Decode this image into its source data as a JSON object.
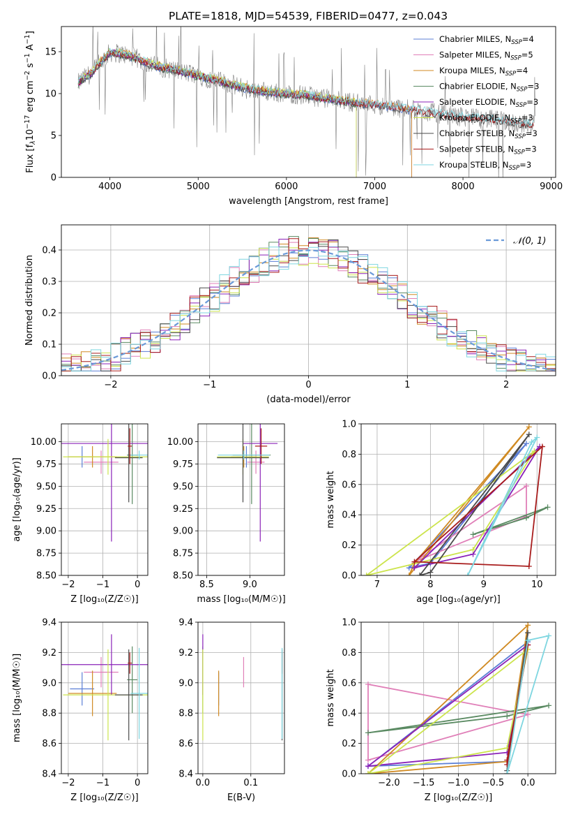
{
  "colors": {
    "Chabrier MILES": "#5b7fd6",
    "Salpeter MILES": "#e07fb8",
    "Kroupa MILES": "#d08a22",
    "Chabrier ELODIE": "#5a8a62",
    "Salpeter ELODIE": "#8a22b8",
    "Kroupa ELODIE": "#cce44c",
    "Chabrier STELIB": "#4a4a4a",
    "Salpeter STELIB": "#a81c1c",
    "Kroupa STELIB": "#7ed6e0",
    "normal": "#6a9ad8",
    "observed": "#808080"
  },
  "chart_data": [
    {
      "id": "spectrum",
      "type": "line",
      "title": "PLATE=1818, MJD=54539, FIBERID=0477, z=0.043",
      "xlabel": "wavelength [Angstrom, rest frame]",
      "ylabel_parts": [
        "Flux [f",
        "λ",
        "10",
        "−17",
        " erg cm",
        "−2",
        " s",
        "−1",
        " A",
        "−1",
        "]"
      ],
      "xlim": [
        3450,
        9050
      ],
      "ylim": [
        0,
        18
      ],
      "xticks": [
        4000,
        5000,
        6000,
        7000,
        8000,
        9000
      ],
      "yticks": [
        0,
        5,
        10,
        15
      ],
      "legend_position": "top-right",
      "legend": [
        {
          "name": "Chabrier MILES",
          "nssp": "4"
        },
        {
          "name": "Salpeter MILES",
          "nssp": "5"
        },
        {
          "name": "Kroupa MILES",
          "nssp": "4"
        },
        {
          "name": "Chabrier ELODIE",
          "nssp": "3"
        },
        {
          "name": "Salpeter ELODIE",
          "nssp": "3"
        },
        {
          "name": "Kroupa ELODIE",
          "nssp": "3"
        },
        {
          "name": "Chabrier STELIB",
          "nssp": "3"
        },
        {
          "name": "Salpeter STELIB",
          "nssp": "3"
        },
        {
          "name": "Kroupa STELIB",
          "nssp": "3"
        }
      ],
      "observed_x": [
        3600,
        3700,
        3800,
        3900,
        4000,
        4100,
        4200,
        4300,
        4400,
        4500,
        4600,
        4700,
        4800,
        4900,
        5000,
        5200,
        5400,
        5600,
        5800,
        6000,
        6200,
        6400,
        6600,
        6800,
        7000,
        7200,
        7400,
        7600,
        7800,
        8000,
        8200,
        8400,
        8600,
        8800
      ],
      "observed_y": [
        10.8,
        11.8,
        12.5,
        13.8,
        14.9,
        14.8,
        14.6,
        14.2,
        13.7,
        13.4,
        13.1,
        12.9,
        12.6,
        12.4,
        12.1,
        11.6,
        11.0,
        10.5,
        10.2,
        10.0,
        9.8,
        9.5,
        9.2,
        8.9,
        8.7,
        8.4,
        8.1,
        7.8,
        7.5,
        7.2,
        7.0,
        6.8,
        6.5,
        6.3
      ],
      "model_end_wavelength": {
        "MILES": 7420,
        "ELODIE": 6790,
        "STELIB": 8800
      }
    },
    {
      "id": "residuals",
      "type": "line",
      "xlabel": "(data-model)/error",
      "ylabel": "Normed distribution",
      "xlim": [
        -2.5,
        2.5
      ],
      "ylim": [
        0,
        0.48
      ],
      "xticks": [
        -2,
        -1,
        0,
        1,
        2
      ],
      "yticks": [
        0.0,
        0.1,
        0.2,
        0.3,
        0.4
      ],
      "normal_label": "𝒩(0, 1)",
      "legend_position": "top-right"
    },
    {
      "id": "z-age",
      "type": "scatter",
      "xlabel": "Z [log₁₀(Z/Z☉)]",
      "ylabel": "age  [log₁₀(age/yr)]",
      "xlim": [
        -2.2,
        0.3
      ],
      "ylim": [
        8.5,
        10.2
      ],
      "xticks": [
        -2,
        -1,
        0
      ],
      "yticks": [
        8.5,
        8.75,
        9.0,
        9.25,
        9.5,
        9.75,
        10.0
      ]
    },
    {
      "id": "mass-age",
      "type": "scatter",
      "xlabel": "mass [log₁₀(M/M☉)]",
      "xlim": [
        8.4,
        9.4
      ],
      "ylim": [
        8.5,
        10.2
      ],
      "xticks": [
        8.5,
        9.0
      ],
      "yticks": [
        8.5,
        8.75,
        9.0,
        9.25,
        9.5,
        9.75,
        10.0
      ]
    },
    {
      "id": "age-weight",
      "type": "line",
      "xlabel": "age  [log₁₀(age/yr)]",
      "ylabel": "mass weight",
      "xlim": [
        6.7,
        10.35
      ],
      "ylim": [
        0,
        1
      ],
      "xticks": [
        7,
        8,
        9,
        10
      ],
      "yticks": [
        0.0,
        0.2,
        0.4,
        0.6,
        0.8,
        1.0
      ]
    },
    {
      "id": "z-mass",
      "type": "scatter",
      "xlabel": "Z [log₁₀(Z/Z☉)]",
      "ylabel": "mass [log₁₀(M/M☉)]",
      "xlim": [
        -2.2,
        0.3
      ],
      "ylim": [
        8.4,
        9.4
      ],
      "xticks": [
        -2,
        -1,
        0
      ],
      "yticks": [
        8.4,
        8.6,
        8.8,
        9.0,
        9.2,
        9.4
      ]
    },
    {
      "id": "ebv-mass",
      "type": "scatter",
      "xlabel": "E(B-V)",
      "xlim": [
        -0.01,
        0.17
      ],
      "ylim": [
        8.4,
        9.4
      ],
      "xticks": [
        0.0,
        0.1
      ],
      "yticks": [
        8.4,
        8.6,
        8.8,
        9.0,
        9.2,
        9.4
      ]
    },
    {
      "id": "z-weight",
      "type": "line",
      "xlabel": "Z [log₁₀(Z/Z☉)]",
      "ylabel": "mass weight",
      "xlim": [
        -2.4,
        0.4
      ],
      "ylim": [
        0,
        1
      ],
      "xticks": [
        -2.0,
        -1.5,
        -1.0,
        -0.5,
        0.0
      ],
      "yticks": [
        0.0,
        0.2,
        0.4,
        0.6,
        0.8,
        1.0
      ]
    }
  ],
  "fits": [
    {
      "model": "Chabrier MILES",
      "Z": -1.6,
      "Zerr": 0.35,
      "age": 9.83,
      "ageerr": 0.12,
      "mass": 8.96,
      "masserr": 0.11,
      "ebv": 0.033,
      "ages": [
        7.6,
        8.0,
        9.8
      ],
      "weights": [
        0.05,
        0.08,
        0.87
      ],
      "zs": [
        -2.3,
        -0.3,
        0.0
      ]
    },
    {
      "model": "Salpeter MILES",
      "Z": -1.05,
      "Zerr": 0.5,
      "age": 9.77,
      "ageerr": 0.13,
      "mass": 9.07,
      "masserr": 0.1,
      "ebv": 0.085,
      "ages": [
        7.7,
        9.8,
        9.8
      ],
      "weights": [
        0.09,
        0.59,
        0.39
      ],
      "zs": [
        -2.3,
        -2.3,
        0.0
      ]
    },
    {
      "model": "Kroupa MILES",
      "Z": -1.3,
      "Zerr": 0.7,
      "age": 9.83,
      "ageerr": 0.12,
      "mass": 8.93,
      "masserr": 0.15,
      "ebv": 0.033,
      "ages": [
        7.6,
        7.7,
        9.85
      ],
      "weights": [
        0.0,
        0.08,
        0.98
      ],
      "zs": [
        -2.3,
        -0.3,
        0.0
      ]
    },
    {
      "model": "Chabrier ELODIE",
      "Z": -0.15,
      "Zerr": 0.15,
      "age": 9.85,
      "ageerr": 0.55,
      "mass": 9.02,
      "masserr": 0.22,
      "ebv": 0.0,
      "ages": [
        8.8,
        9.8,
        10.2
      ],
      "weights": [
        0.27,
        0.38,
        0.45
      ],
      "zs": [
        -2.3,
        -0.3,
        0.3
      ]
    },
    {
      "model": "Salpeter ELODIE",
      "Z": -0.75,
      "Zerr": 1.5,
      "age": 9.98,
      "ageerr": 1.1,
      "mass": 9.12,
      "masserr": 0.2,
      "ebv": 0.0,
      "ages": [
        7.7,
        8.8,
        10.05
      ],
      "weights": [
        0.05,
        0.14,
        0.85
      ],
      "zs": [
        -2.3,
        -0.3,
        0.0
      ]
    },
    {
      "model": "Kroupa ELODIE",
      "Z": -0.85,
      "Zerr": 1.3,
      "age": 9.83,
      "ageerr": 0.2,
      "mass": 8.92,
      "masserr": 0.3,
      "ebv": 0.0,
      "ages": [
        6.8,
        8.8,
        9.95
      ],
      "weights": [
        0.0,
        0.17,
        0.82
      ],
      "zs": [
        -2.3,
        -0.3,
        0.0
      ]
    },
    {
      "model": "Chabrier STELIB",
      "Z": -0.25,
      "Zerr": 0.4,
      "age": 9.82,
      "ageerr": 0.5,
      "mass": 8.92,
      "masserr": 0.3,
      "ebv": 0.165,
      "ages": [
        7.8,
        8.0,
        9.85
      ],
      "weights": [
        0.0,
        0.02,
        0.93
      ],
      "zs": [
        -0.3,
        -0.3,
        0.0
      ]
    },
    {
      "model": "Salpeter STELIB",
      "Z": -0.22,
      "Zerr": 0.06,
      "age": 9.95,
      "ageerr": 0.2,
      "mass": 9.13,
      "masserr": 0.07,
      "ebv": 0.165,
      "ages": [
        7.7,
        9.85,
        10.1
      ],
      "weights": [
        0.09,
        0.06,
        0.85
      ],
      "zs": [
        -0.3,
        -0.3,
        0.0
      ]
    },
    {
      "model": "Kroupa STELIB",
      "Z": 0.05,
      "Zerr": 0.25,
      "age": 9.85,
      "ageerr": 0.05,
      "mass": 8.93,
      "masserr": 0.3,
      "ebv": 0.165,
      "ages": [
        8.7,
        9.9,
        10.0
      ],
      "weights": [
        0.0,
        0.88,
        0.91
      ],
      "zs": [
        -0.3,
        0.0,
        0.3
      ]
    }
  ]
}
